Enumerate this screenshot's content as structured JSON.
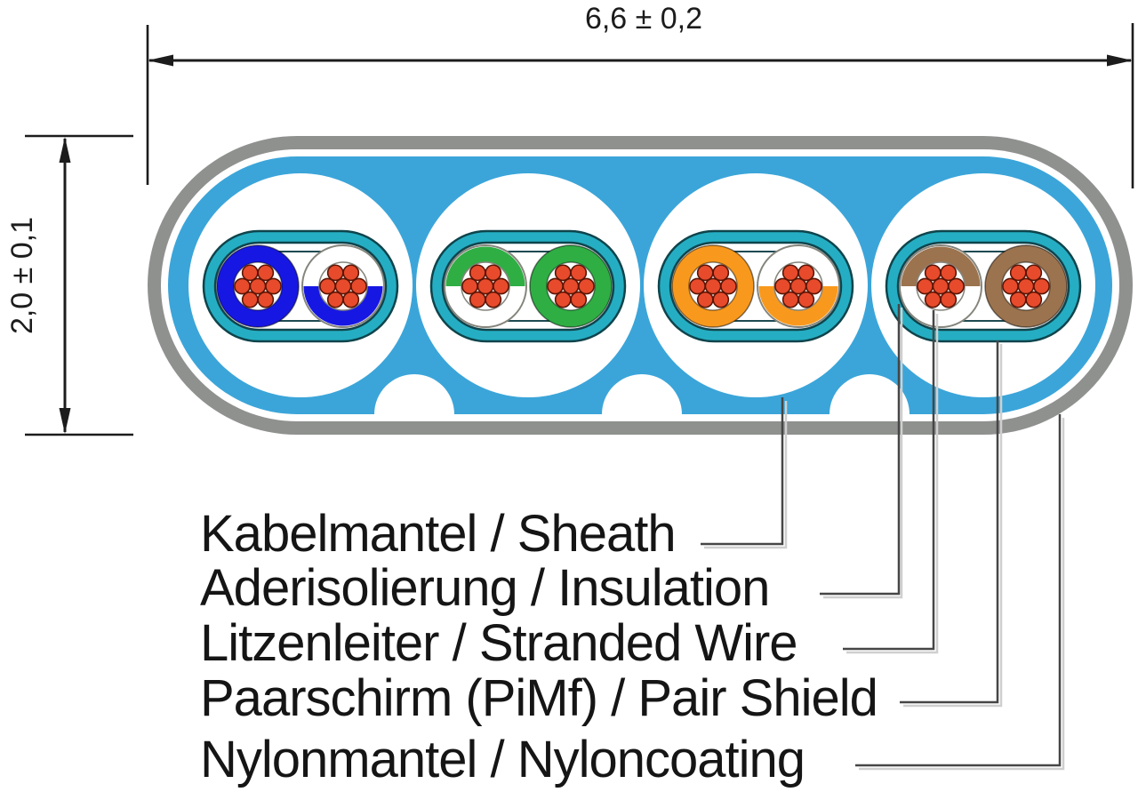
{
  "dimensions": {
    "width_label": "6,6 ± 0,2",
    "height_label": "2,0 ± 0,1"
  },
  "labels": [
    {
      "id": "sheath",
      "text": "Kabelmantel / Sheath"
    },
    {
      "id": "insulation",
      "text": "Aderisolierung / Insulation"
    },
    {
      "id": "stranded-wire",
      "text": "Litzenleiter / Stranded Wire"
    },
    {
      "id": "pair-shield",
      "text": "Paarschirm (PiMf) / Pair Shield"
    },
    {
      "id": "nylon-coating",
      "text": "Nylonmantel / Nyloncoating"
    }
  ],
  "pairs": [
    {
      "name": "blue-pair",
      "insulation_hex": "#1717E3",
      "solid_wire": "left",
      "striped_wire": "right",
      "stripe_half": "bottom"
    },
    {
      "name": "green-pair",
      "insulation_hex": "#2FAE44",
      "solid_wire": "right",
      "striped_wire": "left",
      "stripe_half": "top"
    },
    {
      "name": "orange-pair",
      "insulation_hex": "#F8991D",
      "solid_wire": "left",
      "striped_wire": "right",
      "stripe_half": "bottom"
    },
    {
      "name": "brown-pair",
      "insulation_hex": "#9B734E",
      "solid_wire": "right",
      "striped_wire": "left",
      "stripe_half": "top"
    }
  ],
  "strands_per_conductor": 7,
  "colors": {
    "jacket_blue": "#3BA5D9",
    "nylon_gray": "#8F918F",
    "shield_teal": "#25AEC3",
    "shield_outline": "#0F444C",
    "inner_wrap": "#1E4A52",
    "striped_outline": "#85857D",
    "conductor_red": "#E74B2C",
    "conductor_outline": "#5A1505",
    "dimension_line": "#1C1C1C",
    "callout_line": "#464646",
    "callout_shadow": "#CFCFCF",
    "label_text": "#151515"
  }
}
